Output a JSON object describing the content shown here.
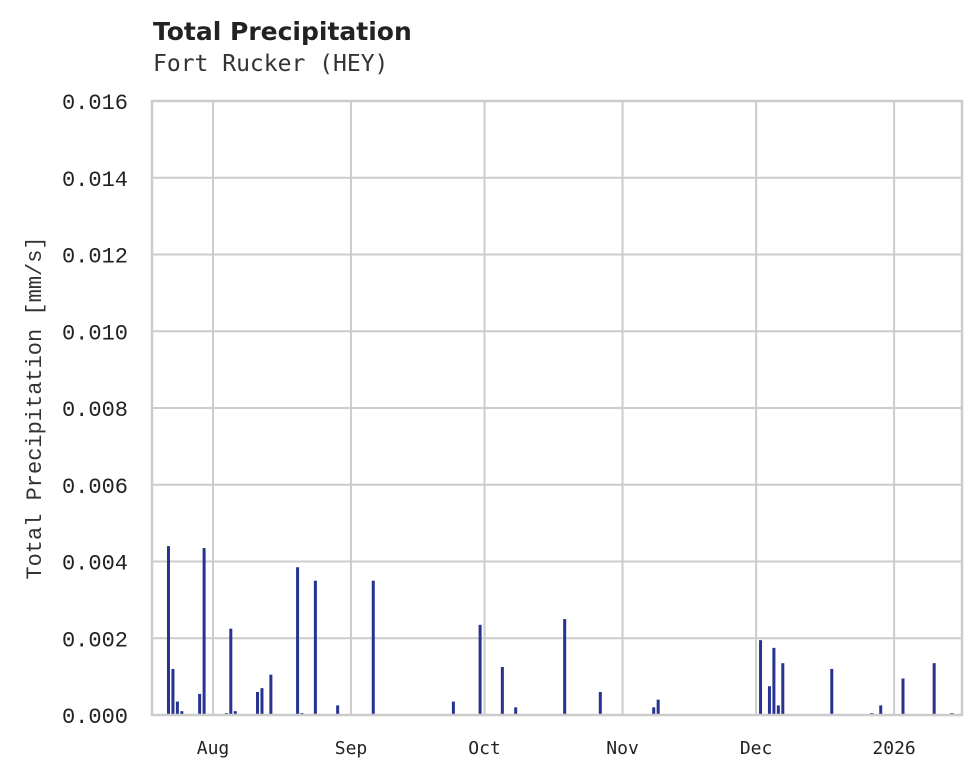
{
  "title": "Total Precipitation",
  "subtitle": "Fort Rucker (HEY)",
  "colors": {
    "series": "#26338f",
    "grid": "#cccccc",
    "text": "#222222"
  },
  "chart_data": {
    "type": "bar",
    "title": "Total Precipitation",
    "subtitle": "Fort Rucker (HEY)",
    "xlabel": "",
    "ylabel": "Total Precipitation [mm/s]",
    "ylim": [
      0.0,
      0.016
    ],
    "yticks": [
      "0.000",
      "0.002",
      "0.004",
      "0.006",
      "0.008",
      "0.010",
      "0.012",
      "0.014",
      "0.016"
    ],
    "xticks": [
      "Aug",
      "Sep",
      "Oct",
      "Nov",
      "Dec",
      "2026"
    ],
    "grid": true,
    "legend": null,
    "series": [
      {
        "name": "Total Precipitation",
        "points": [
          {
            "date": "2025-07-22",
            "value": 0.0044
          },
          {
            "date": "2025-07-23",
            "value": 0.0012
          },
          {
            "date": "2025-07-24",
            "value": 0.00035
          },
          {
            "date": "2025-07-25",
            "value": 0.0001
          },
          {
            "date": "2025-07-29",
            "value": 0.00055
          },
          {
            "date": "2025-07-30",
            "value": 0.00435
          },
          {
            "date": "2025-08-04",
            "value": 5e-05
          },
          {
            "date": "2025-08-05",
            "value": 0.00225
          },
          {
            "date": "2025-08-06",
            "value": 0.0001
          },
          {
            "date": "2025-08-11",
            "value": 0.0006
          },
          {
            "date": "2025-08-12",
            "value": 0.0007
          },
          {
            "date": "2025-08-14",
            "value": 0.00105
          },
          {
            "date": "2025-08-20",
            "value": 0.00385
          },
          {
            "date": "2025-08-21",
            "value": 5e-05
          },
          {
            "date": "2025-08-24",
            "value": 0.0035
          },
          {
            "date": "2025-08-29",
            "value": 0.00025
          },
          {
            "date": "2025-09-06",
            "value": 0.0035
          },
          {
            "date": "2025-09-24",
            "value": 0.00035
          },
          {
            "date": "2025-09-30",
            "value": 0.00235
          },
          {
            "date": "2025-10-05",
            "value": 0.00125
          },
          {
            "date": "2025-10-08",
            "value": 0.0002
          },
          {
            "date": "2025-10-19",
            "value": 0.0025
          },
          {
            "date": "2025-10-27",
            "value": 0.0006
          },
          {
            "date": "2025-11-08",
            "value": 0.0002
          },
          {
            "date": "2025-11-09",
            "value": 0.0004
          },
          {
            "date": "2025-12-02",
            "value": 0.00195
          },
          {
            "date": "2025-12-04",
            "value": 0.00075
          },
          {
            "date": "2025-12-05",
            "value": 0.00175
          },
          {
            "date": "2025-12-06",
            "value": 0.00025
          },
          {
            "date": "2025-12-07",
            "value": 0.00135
          },
          {
            "date": "2025-12-18",
            "value": 0.0012
          },
          {
            "date": "2025-12-27",
            "value": 5e-05
          },
          {
            "date": "2025-12-29",
            "value": 0.00025
          },
          {
            "date": "2026-01-03",
            "value": 0.00095
          },
          {
            "date": "2026-01-10",
            "value": 0.00135
          },
          {
            "date": "2026-01-14",
            "value": 5e-05
          }
        ]
      }
    ]
  }
}
